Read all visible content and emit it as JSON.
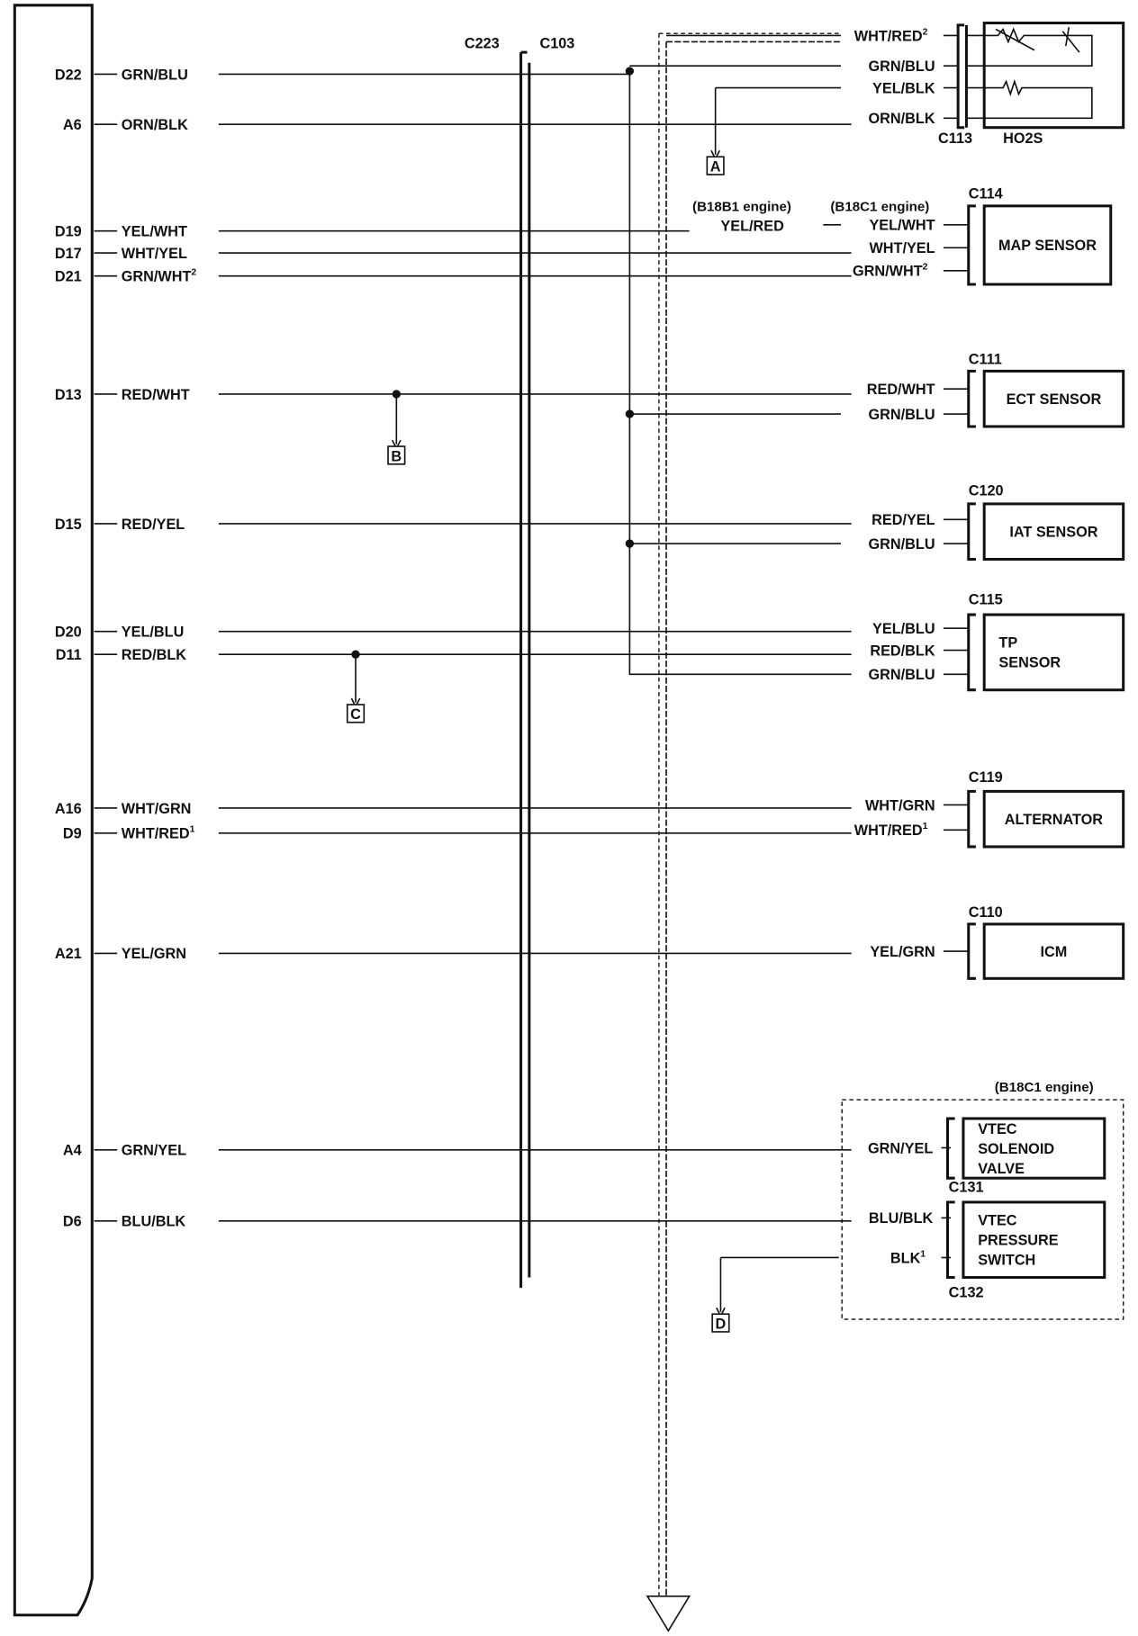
{
  "ecm_pins": [
    {
      "pin": "D22",
      "wire": "GRN/BLU",
      "sup": ""
    },
    {
      "pin": "A6",
      "wire": "ORN/BLK",
      "sup": ""
    },
    {
      "pin": "D19",
      "wire": "YEL/WHT",
      "sup": ""
    },
    {
      "pin": "D17",
      "wire": "WHT/YEL",
      "sup": ""
    },
    {
      "pin": "D21",
      "wire": "GRN/WHT",
      "sup": "2"
    },
    {
      "pin": "D13",
      "wire": "RED/WHT",
      "sup": ""
    },
    {
      "pin": "D15",
      "wire": "RED/YEL",
      "sup": ""
    },
    {
      "pin": "D20",
      "wire": "YEL/BLU",
      "sup": ""
    },
    {
      "pin": "D11",
      "wire": "RED/BLK",
      "sup": ""
    },
    {
      "pin": "A16",
      "wire": "WHT/GRN",
      "sup": ""
    },
    {
      "pin": "D9",
      "wire": "WHT/RED",
      "sup": "1"
    },
    {
      "pin": "A21",
      "wire": "YEL/GRN",
      "sup": ""
    },
    {
      "pin": "A4",
      "wire": "GRN/YEL",
      "sup": ""
    },
    {
      "pin": "D6",
      "wire": "BLU/BLK",
      "sup": ""
    }
  ],
  "connectors": {
    "left": "C223",
    "right": "C103"
  },
  "right_wires": [
    {
      "wire": "WHT/RED",
      "sup": "2"
    },
    {
      "wire": "GRN/BLU",
      "sup": ""
    },
    {
      "wire": "YEL/BLK",
      "sup": ""
    },
    {
      "wire": "ORN/BLK",
      "sup": ""
    },
    {
      "wire": "YEL/WHT",
      "sup": ""
    },
    {
      "wire": "WHT/YEL",
      "sup": ""
    },
    {
      "wire": "GRN/WHT",
      "sup": "2"
    },
    {
      "wire": "RED/WHT",
      "sup": ""
    },
    {
      "wire": "GRN/BLU",
      "sup": ""
    },
    {
      "wire": "RED/YEL",
      "sup": ""
    },
    {
      "wire": "GRN/BLU",
      "sup": ""
    },
    {
      "wire": "YEL/BLU",
      "sup": ""
    },
    {
      "wire": "RED/BLK",
      "sup": ""
    },
    {
      "wire": "GRN/BLU",
      "sup": ""
    },
    {
      "wire": "WHT/GRN",
      "sup": ""
    },
    {
      "wire": "WHT/RED",
      "sup": "1"
    },
    {
      "wire": "YEL/GRN",
      "sup": ""
    },
    {
      "wire": "GRN/YEL",
      "sup": ""
    },
    {
      "wire": "BLU/BLK",
      "sup": ""
    },
    {
      "wire": "BLK",
      "sup": "1"
    }
  ],
  "engine_variants": {
    "b18b1": "(B18B1 engine)",
    "b18c1": "(B18C1 engine)",
    "b18b1_wire": "YEL/RED",
    "vtec_group": "(B18C1 engine)"
  },
  "components": [
    {
      "connector": "C113",
      "name": "HO2S"
    },
    {
      "connector": "C114",
      "name": "MAP SENSOR"
    },
    {
      "connector": "C111",
      "name": "ECT SENSOR"
    },
    {
      "connector": "C120",
      "name": "IAT SENSOR"
    },
    {
      "connector": "C115",
      "name": "TP\nSENSOR"
    },
    {
      "connector": "C119",
      "name": "ALTERNATOR"
    },
    {
      "connector": "C110",
      "name": "ICM"
    },
    {
      "connector": "C131",
      "name": "VTEC\nSOLENOID\nVALVE"
    },
    {
      "connector": "C132",
      "name": "VTEC\nPRESSURE\nSWITCH"
    }
  ],
  "references": [
    "A",
    "B",
    "C",
    "D"
  ],
  "icons": {
    "ground": "ground-triangle-icon",
    "heater": "resistor-heater-icon",
    "sensor": "variable-resistor-icon"
  }
}
